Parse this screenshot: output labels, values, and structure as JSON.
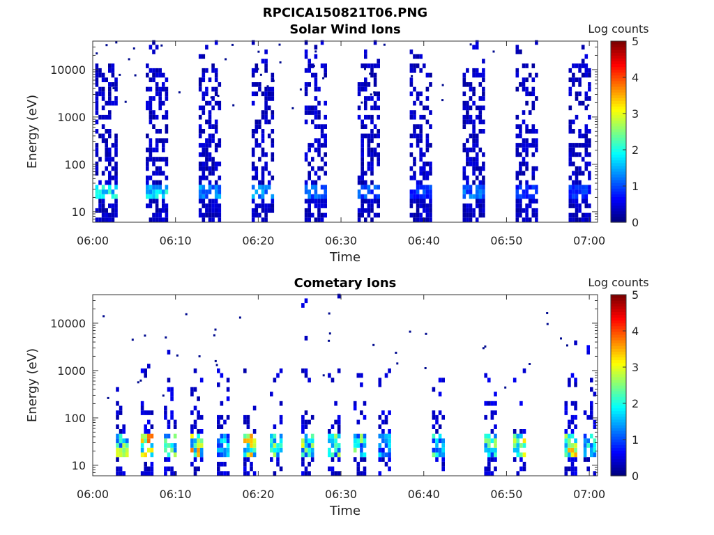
{
  "figure": {
    "title": "RPCICA150821T06.PNG"
  },
  "chart_data": [
    {
      "type": "heatmap",
      "title": "Solar Wind Ions",
      "xlabel": "Time",
      "ylabel": "Energy (eV)",
      "xlim": [
        "06:00",
        "07:01"
      ],
      "ylim_eV": [
        6,
        40000
      ],
      "yscale": "log",
      "x_ticks": [
        "06:00",
        "06:10",
        "06:20",
        "06:30",
        "06:40",
        "06:50",
        "07:00"
      ],
      "y_ticks": [
        "10",
        "100",
        "1000",
        "10000"
      ],
      "colorbar": {
        "label": "Log counts",
        "range": [
          0,
          5
        ],
        "ticks": [
          "0",
          "1",
          "2",
          "3",
          "4",
          "5"
        ],
        "colormap": "jet"
      },
      "bursts_min": [
        0.3,
        6.4,
        12.8,
        19.2,
        25.6,
        32.0,
        38.3,
        44.7,
        51.1,
        57.5
      ],
      "peak_energy_eV": 25,
      "peak_log_counts": [
        2.2,
        2.2,
        1.6,
        1.8,
        1.3,
        1.2,
        1.1,
        1.4,
        1.0,
        1.0
      ],
      "background": "sparse low counts (log ~0-0.5) from ~10 eV to ~30000 eV within each burst"
    },
    {
      "type": "heatmap",
      "title": "Cometary Ions",
      "xlabel": "Time",
      "ylabel": "Energy (eV)",
      "xlim": [
        "06:00",
        "07:01"
      ],
      "ylim_eV": [
        6,
        40000
      ],
      "yscale": "log",
      "x_ticks": [
        "06:00",
        "06:10",
        "06:20",
        "06:30",
        "06:40",
        "06:50",
        "07:00"
      ],
      "y_ticks": [
        "10",
        "100",
        "1000",
        "10000"
      ],
      "colorbar": {
        "label": "Log counts",
        "range": [
          0,
          5
        ],
        "ticks": [
          "0",
          "1",
          "2",
          "3",
          "4",
          "5"
        ],
        "colormap": "jet"
      },
      "bursts_min": [
        2.8,
        5.8,
        8.6,
        11.8,
        15.0,
        18.2,
        21.4,
        25.2,
        28.4,
        31.5,
        34.5,
        41.0,
        47.3,
        50.8,
        57.0,
        59.3
      ],
      "peak_energy_eV": 28,
      "peak_log_counts": [
        3.0,
        4.0,
        3.0,
        3.8,
        2.0,
        3.7,
        2.8,
        3.2,
        2.8,
        2.7,
        1.9,
        2.5,
        2.8,
        3.5,
        3.8,
        2.2
      ],
      "background": "sparse low counts (log ~0-0.5) from ~30 eV to ~1000 eV, occasional points up to ~20000 eV"
    }
  ]
}
